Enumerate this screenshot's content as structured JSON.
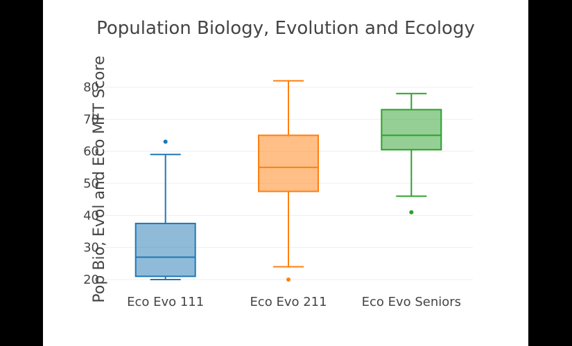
{
  "chart_data": {
    "type": "box",
    "title": "Population Biology, Evolution and Ecology",
    "xlabel": "",
    "ylabel": "Pop Bio, Evol and Eco MFT Score",
    "ylim": [
      17,
      86
    ],
    "yticks": [
      20,
      30,
      40,
      50,
      60,
      70,
      80
    ],
    "grid": true,
    "categories": [
      "Eco Evo 111",
      "Eco Evo 211",
      "Eco Evo Seniors"
    ],
    "series": [
      {
        "category": "Eco Evo 111",
        "color": "#1f77b4",
        "min": 20,
        "q1": 21,
        "median": 27,
        "q3": 37.5,
        "max": 59,
        "outliers": [
          63
        ]
      },
      {
        "category": "Eco Evo 211",
        "color": "#ff7f0e",
        "min": 24,
        "q1": 47.5,
        "median": 55,
        "q3": 65,
        "max": 82,
        "outliers": [
          20
        ]
      },
      {
        "category": "Eco Evo Seniors",
        "color": "#2ca02c",
        "min": 46,
        "q1": 60.5,
        "median": 65,
        "q3": 73,
        "max": 78,
        "outliers": [
          41
        ]
      }
    ]
  }
}
